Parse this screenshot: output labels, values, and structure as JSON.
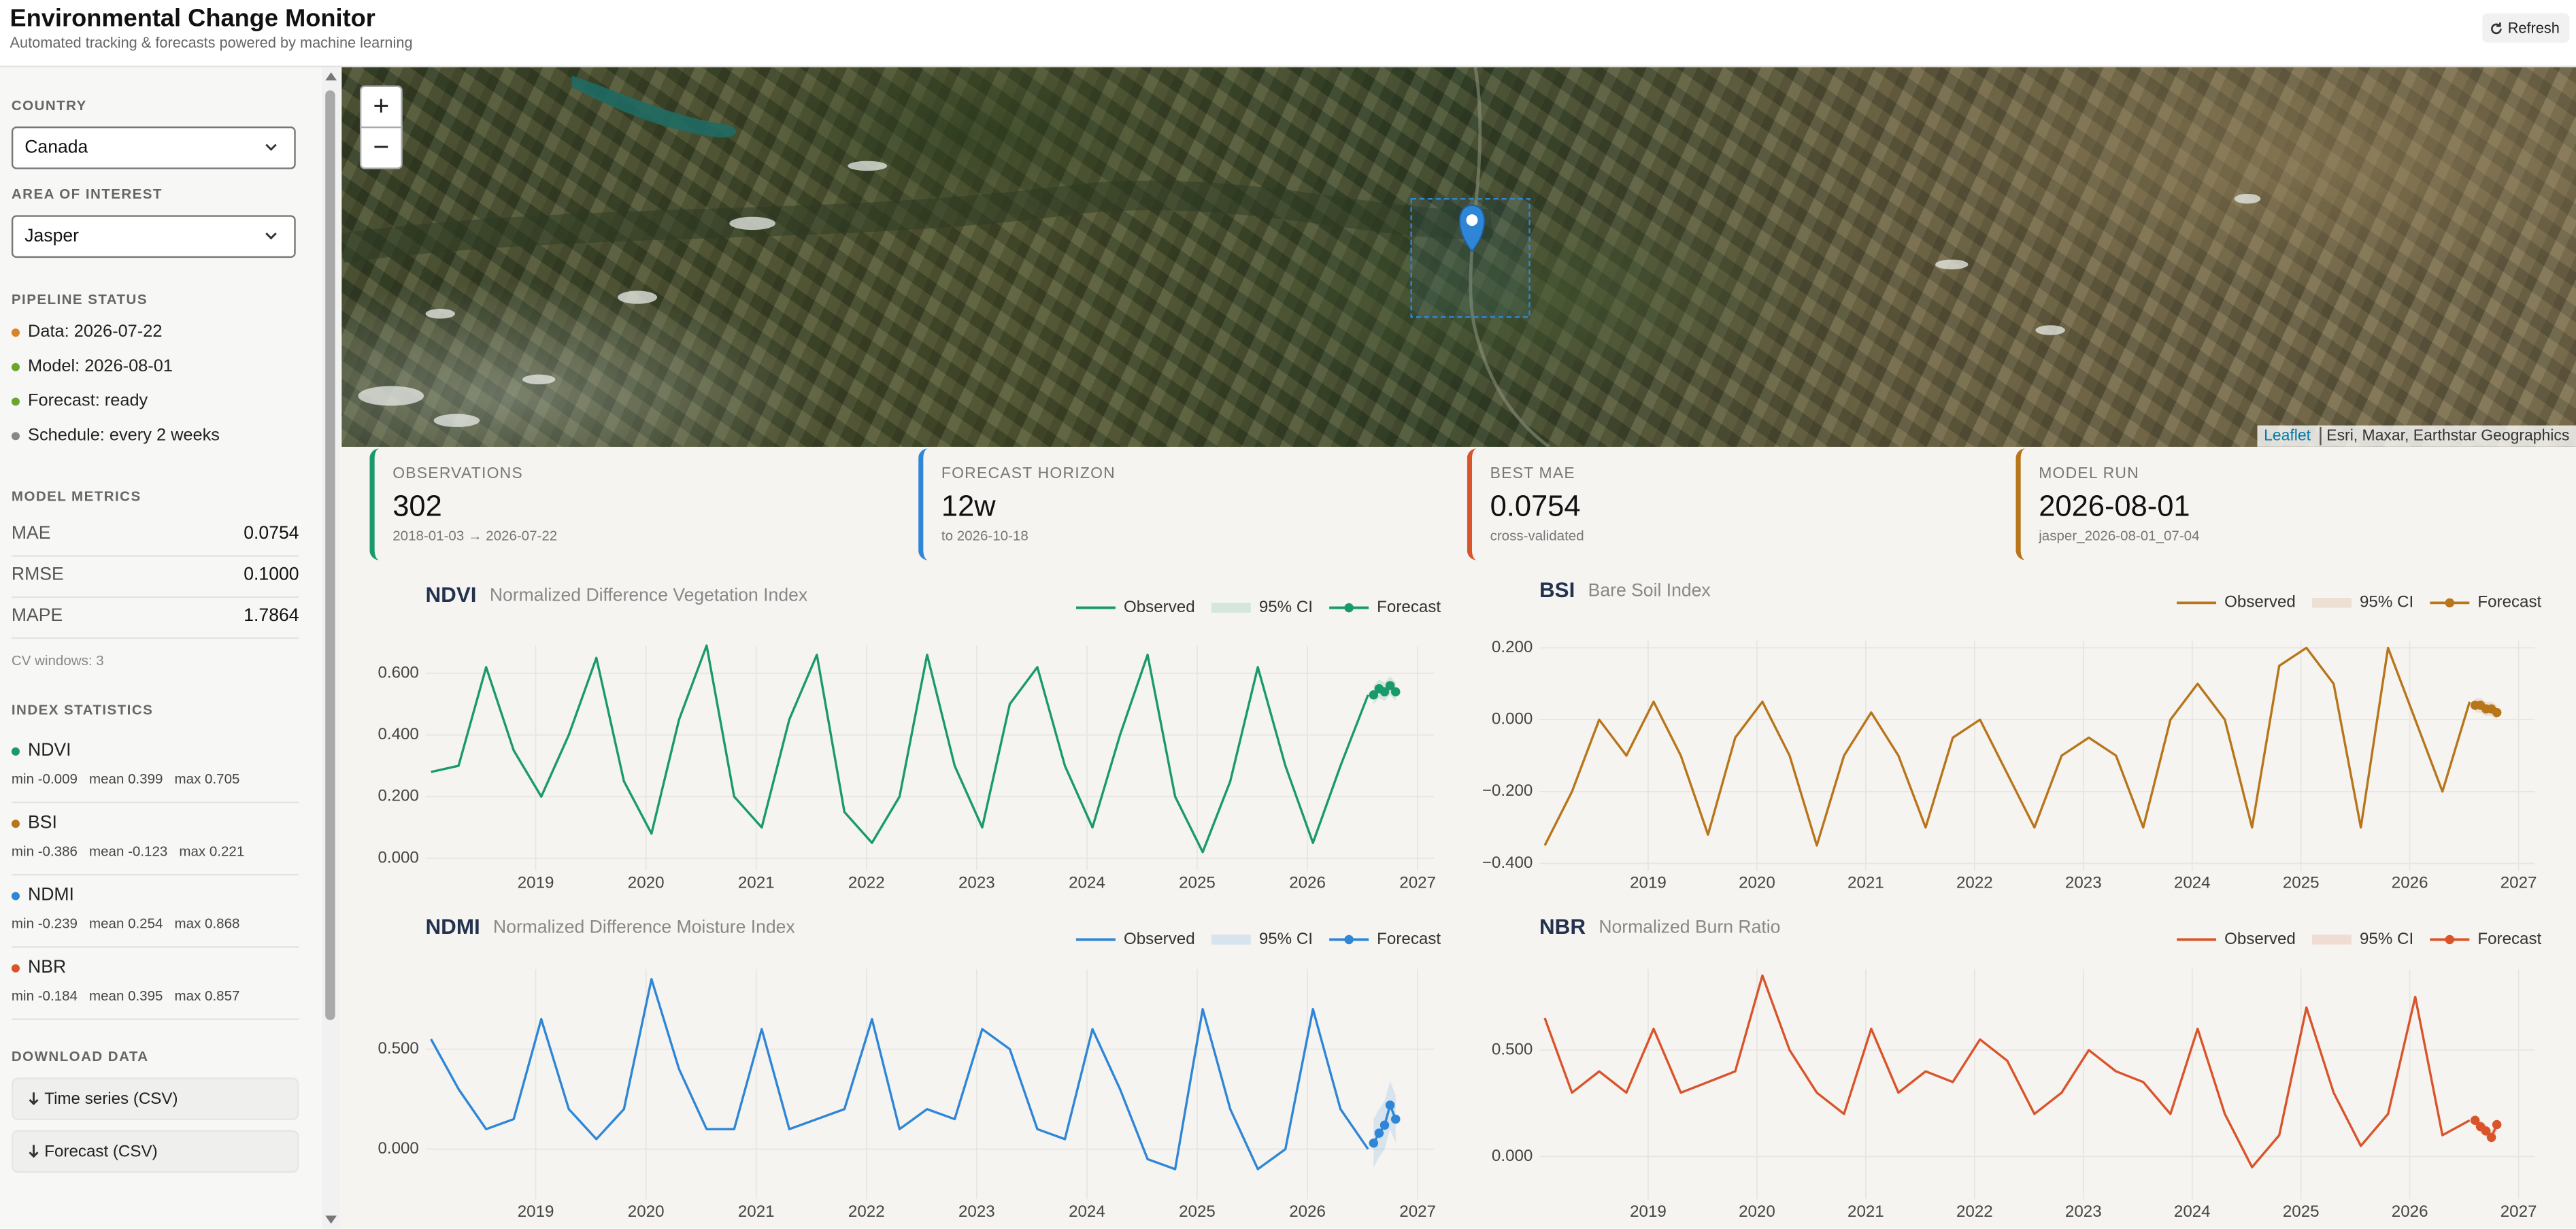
{
  "header": {
    "title": "Environmental Change Monitor",
    "subtitle": "Automated tracking & forecasts powered by machine learning",
    "refresh": "Refresh"
  },
  "sidebar": {
    "country_label": "COUNTRY",
    "country": "Canada",
    "aoi_label": "AREA OF INTEREST",
    "aoi": "Jasper",
    "pipeline_label": "PIPELINE STATUS",
    "pipeline": [
      {
        "text": "Data: 2026-07-22",
        "color": "#d9822b"
      },
      {
        "text": "Model: 2026-08-01",
        "color": "#6aa62e"
      },
      {
        "text": "Forecast: ready",
        "color": "#6aa62e"
      },
      {
        "text": "Schedule: every 2 weeks",
        "color": "#888888"
      }
    ],
    "metrics_label": "MODEL METRICS",
    "metrics": [
      {
        "name": "MAE",
        "value": "0.0754"
      },
      {
        "name": "RMSE",
        "value": "0.1000"
      },
      {
        "name": "MAPE",
        "value": "1.7864"
      }
    ],
    "cv_note": "CV windows: 3",
    "stats_label": "INDEX STATISTICS",
    "stats": [
      {
        "name": "NDVI",
        "color": "#1a9a6c",
        "text": "min -0.009   mean 0.399   max 0.705"
      },
      {
        "name": "BSI",
        "color": "#b8751a",
        "text": "min -0.386   mean -0.123   max 0.221"
      },
      {
        "name": "NDMI",
        "color": "#2f86d6",
        "text": "min -0.239   mean 0.254   max 0.868"
      },
      {
        "name": "NBR",
        "color": "#d9542a",
        "text": "min -0.184   mean 0.395   max 0.857"
      }
    ],
    "download_label": "DOWNLOAD DATA",
    "downloads": [
      "Time series (CSV)",
      "Forecast (CSV)"
    ]
  },
  "map": {
    "zoom_in": "+",
    "zoom_out": "−",
    "attribution_link": "Leaflet",
    "attribution": "Esri, Maxar, Earthstar Geographics"
  },
  "kpis": [
    {
      "label": "OBSERVATIONS",
      "value": "302",
      "sub": "2018-01-03 → 2026-07-22",
      "color": "#1a9a6c"
    },
    {
      "label": "FORECAST HORIZON",
      "value": "12w",
      "sub": "to 2026-10-18",
      "color": "#2f86d6"
    },
    {
      "label": "BEST MAE",
      "value": "0.0754",
      "sub": "cross-validated",
      "color": "#d9542a"
    },
    {
      "label": "MODEL RUN",
      "value": "2026-08-01",
      "sub": "jasper_2026-08-01_07-04",
      "color": "#b8751a"
    }
  ],
  "chart_data": [
    {
      "type": "line",
      "title": "NDVI",
      "subtitle": "Normalized Difference Vegetation Index",
      "xlim": [
        2018.0,
        2027.15
      ],
      "xticks": [
        2019,
        2020,
        2021,
        2022,
        2023,
        2024,
        2025,
        2026,
        2027
      ],
      "ylim": [
        -0.04,
        0.69
      ],
      "yticks": [
        {
          "value": 0,
          "label": "0.000"
        },
        {
          "value": 0.2,
          "label": "0.200"
        },
        {
          "value": 0.4,
          "label": "0.400"
        },
        {
          "value": 0.6,
          "label": "0.600"
        }
      ],
      "grid": true,
      "series": [
        {
          "name": "Observed",
          "color": "#1a9a6c",
          "x": [
            2018.05,
            2018.3,
            2018.55,
            2018.8,
            2019.05,
            2019.3,
            2019.55,
            2019.8,
            2020.05,
            2020.3,
            2020.55,
            2020.8,
            2021.05,
            2021.3,
            2021.55,
            2021.8,
            2022.05,
            2022.3,
            2022.55,
            2022.8,
            2023.05,
            2023.3,
            2023.55,
            2023.8,
            2024.05,
            2024.3,
            2024.55,
            2024.8,
            2025.05,
            2025.3,
            2025.55,
            2025.8,
            2026.05,
            2026.3,
            2026.55
          ],
          "values": [
            0.28,
            0.3,
            0.62,
            0.35,
            0.2,
            0.4,
            0.65,
            0.25,
            0.08,
            0.45,
            0.69,
            0.2,
            0.1,
            0.45,
            0.66,
            0.15,
            0.05,
            0.2,
            0.66,
            0.3,
            0.1,
            0.5,
            0.62,
            0.3,
            0.1,
            0.4,
            0.66,
            0.2,
            0.02,
            0.25,
            0.62,
            0.3,
            0.05,
            0.3,
            0.53
          ]
        },
        {
          "name": "95% CI",
          "color": "#1a9a6c",
          "x": [
            2026.6,
            2026.65,
            2026.7,
            2026.75,
            2026.8
          ],
          "lower": [
            0.5,
            0.52,
            0.51,
            0.53,
            0.51
          ],
          "upper": [
            0.56,
            0.58,
            0.57,
            0.59,
            0.57
          ]
        },
        {
          "name": "Forecast",
          "color": "#1a9a6c",
          "markers": true,
          "x": [
            2026.6,
            2026.65,
            2026.7,
            2026.75,
            2026.8
          ],
          "values": [
            0.53,
            0.55,
            0.54,
            0.56,
            0.54
          ]
        }
      ]
    },
    {
      "type": "line",
      "title": "BSI",
      "subtitle": "Bare Soil Index",
      "xlim": [
        2018.0,
        2027.15
      ],
      "xticks": [
        2019,
        2020,
        2021,
        2022,
        2023,
        2024,
        2025,
        2026,
        2027
      ],
      "ylim": [
        -0.42,
        0.22
      ],
      "yticks": [
        {
          "value": -0.4,
          "label": "−0.400"
        },
        {
          "value": -0.2,
          "label": "−0.200"
        },
        {
          "value": 0,
          "label": "0.000"
        },
        {
          "value": 0.2,
          "label": "0.200"
        }
      ],
      "grid": true,
      "series": [
        {
          "name": "Observed",
          "color": "#b8751a",
          "x": [
            2018.05,
            2018.3,
            2018.55,
            2018.8,
            2019.05,
            2019.3,
            2019.55,
            2019.8,
            2020.05,
            2020.3,
            2020.55,
            2020.8,
            2021.05,
            2021.3,
            2021.55,
            2021.8,
            2022.05,
            2022.3,
            2022.55,
            2022.8,
            2023.05,
            2023.3,
            2023.55,
            2023.8,
            2024.05,
            2024.3,
            2024.55,
            2024.8,
            2025.05,
            2025.3,
            2025.55,
            2025.8,
            2026.05,
            2026.3,
            2026.55
          ],
          "values": [
            -0.35,
            -0.2,
            0.0,
            -0.1,
            0.05,
            -0.1,
            -0.32,
            -0.05,
            0.05,
            -0.1,
            -0.35,
            -0.1,
            0.02,
            -0.1,
            -0.3,
            -0.05,
            0.0,
            -0.15,
            -0.3,
            -0.1,
            -0.05,
            -0.1,
            -0.3,
            0.0,
            0.1,
            0.0,
            -0.3,
            0.15,
            0.2,
            0.1,
            -0.3,
            0.2,
            0.0,
            -0.2,
            0.05
          ]
        },
        {
          "name": "95% CI",
          "color": "#b8751a",
          "x": [
            2026.6,
            2026.65,
            2026.7,
            2026.75,
            2026.8
          ],
          "lower": [
            0.02,
            0.02,
            0.01,
            0.01,
            0.0
          ],
          "upper": [
            0.06,
            0.06,
            0.05,
            0.05,
            0.04
          ]
        },
        {
          "name": "Forecast",
          "color": "#b8751a",
          "markers": true,
          "x": [
            2026.6,
            2026.65,
            2026.7,
            2026.75,
            2026.8
          ],
          "values": [
            0.04,
            0.04,
            0.03,
            0.03,
            0.02
          ]
        }
      ]
    },
    {
      "type": "line",
      "title": "NDMI",
      "subtitle": "Normalized Difference Moisture Index",
      "xlim": [
        2018.0,
        2027.15
      ],
      "xticks": [
        2019,
        2020,
        2021,
        2022,
        2023,
        2024,
        2025,
        2026,
        2027
      ],
      "ylim": [
        -0.25,
        0.9
      ],
      "yticks": [
        {
          "value": 0,
          "label": "0.000"
        },
        {
          "value": 0.5,
          "label": "0.500"
        }
      ],
      "grid": true,
      "series": [
        {
          "name": "Observed",
          "color": "#2f86d6",
          "x": [
            2018.05,
            2018.3,
            2018.55,
            2018.8,
            2019.05,
            2019.3,
            2019.55,
            2019.8,
            2020.05,
            2020.3,
            2020.55,
            2020.8,
            2021.05,
            2021.3,
            2021.55,
            2021.8,
            2022.05,
            2022.3,
            2022.55,
            2022.8,
            2023.05,
            2023.3,
            2023.55,
            2023.8,
            2024.05,
            2024.3,
            2024.55,
            2024.8,
            2025.05,
            2025.3,
            2025.55,
            2025.8,
            2026.05,
            2026.3,
            2026.55
          ],
          "values": [
            0.55,
            0.3,
            0.1,
            0.15,
            0.65,
            0.2,
            0.05,
            0.2,
            0.85,
            0.4,
            0.1,
            0.1,
            0.6,
            0.1,
            0.15,
            0.2,
            0.65,
            0.1,
            0.2,
            0.15,
            0.6,
            0.5,
            0.1,
            0.05,
            0.6,
            0.3,
            -0.05,
            -0.1,
            0.7,
            0.2,
            -0.1,
            0.0,
            0.7,
            0.2,
            0.0
          ]
        },
        {
          "name": "95% CI",
          "color": "#2f86d6",
          "x": [
            2026.6,
            2026.65,
            2026.7,
            2026.75,
            2026.8
          ],
          "lower": [
            -0.09,
            -0.04,
            0.0,
            0.1,
            0.03
          ],
          "upper": [
            0.15,
            0.2,
            0.24,
            0.34,
            0.27
          ]
        },
        {
          "name": "Forecast",
          "color": "#2f86d6",
          "markers": true,
          "x": [
            2026.6,
            2026.65,
            2026.7,
            2026.75,
            2026.8
          ],
          "values": [
            0.03,
            0.08,
            0.12,
            0.22,
            0.15
          ]
        }
      ]
    },
    {
      "type": "line",
      "title": "NBR",
      "subtitle": "Normalized Burn Ratio",
      "xlim": [
        2018.0,
        2027.15
      ],
      "xticks": [
        2019,
        2020,
        2021,
        2022,
        2023,
        2024,
        2025,
        2026,
        2027
      ],
      "ylim": [
        -0.2,
        0.88
      ],
      "yticks": [
        {
          "value": 0,
          "label": "0.000"
        },
        {
          "value": 0.5,
          "label": "0.500"
        }
      ],
      "grid": true,
      "series": [
        {
          "name": "Observed",
          "color": "#d9542a",
          "x": [
            2018.05,
            2018.3,
            2018.55,
            2018.8,
            2019.05,
            2019.3,
            2019.55,
            2019.8,
            2020.05,
            2020.3,
            2020.55,
            2020.8,
            2021.05,
            2021.3,
            2021.55,
            2021.8,
            2022.05,
            2022.3,
            2022.55,
            2022.8,
            2023.05,
            2023.3,
            2023.55,
            2023.8,
            2024.05,
            2024.3,
            2024.55,
            2024.8,
            2025.05,
            2025.3,
            2025.55,
            2025.8,
            2026.05,
            2026.3,
            2026.55
          ],
          "values": [
            0.65,
            0.3,
            0.4,
            0.3,
            0.6,
            0.3,
            0.35,
            0.4,
            0.85,
            0.5,
            0.3,
            0.2,
            0.6,
            0.3,
            0.4,
            0.35,
            0.55,
            0.45,
            0.2,
            0.3,
            0.5,
            0.4,
            0.35,
            0.2,
            0.6,
            0.2,
            -0.05,
            0.1,
            0.7,
            0.3,
            0.05,
            0.2,
            0.75,
            0.1,
            0.17
          ]
        },
        {
          "name": "95% CI",
          "color": "#d9542a",
          "x": [
            2026.6,
            2026.65,
            2026.7,
            2026.75,
            2026.8
          ],
          "lower": [
            0.14,
            0.11,
            0.09,
            0.06,
            0.12
          ],
          "upper": [
            0.2,
            0.17,
            0.15,
            0.12,
            0.18
          ]
        },
        {
          "name": "Forecast",
          "color": "#d9542a",
          "markers": true,
          "x": [
            2026.6,
            2026.65,
            2026.7,
            2026.75,
            2026.8
          ],
          "values": [
            0.17,
            0.14,
            0.12,
            0.09,
            0.15
          ]
        }
      ]
    }
  ]
}
